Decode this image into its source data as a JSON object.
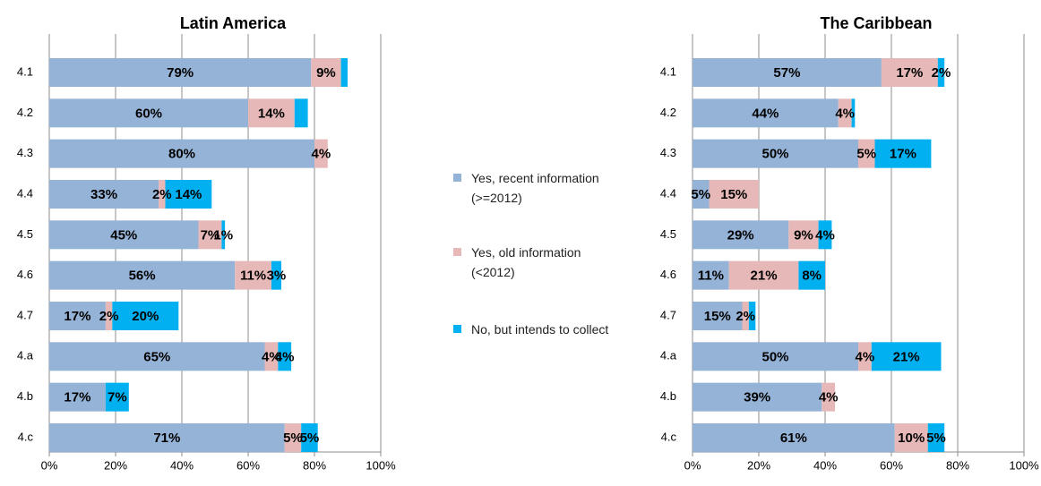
{
  "chart_data": [
    {
      "type": "bar",
      "orientation": "horizontal",
      "stacked": true,
      "title": "Latin America",
      "categories": [
        "4.1",
        "4.2",
        "4.3",
        "4.4",
        "4.5",
        "4.6",
        "4.7",
        "4.a",
        "4.b",
        "4.c"
      ],
      "series": [
        {
          "name": "Yes, recent information (>=2012)",
          "color": "#95b3d7",
          "values": [
            79,
            60,
            80,
            33,
            45,
            56,
            17,
            65,
            17,
            71
          ],
          "value_labels": [
            "79%",
            "60%",
            "80%",
            "33%",
            "45%",
            "56%",
            "17%",
            "65%",
            "17%",
            "71%"
          ]
        },
        {
          "name": "Yes, old information (<2012)",
          "color": "#e6b9b8",
          "values": [
            9,
            14,
            4,
            2,
            7,
            11,
            2,
            4,
            0,
            5
          ],
          "value_labels": [
            "9%",
            "14%",
            "4%",
            "2%",
            "7%",
            "11%",
            "2%",
            "4%",
            null,
            "5%"
          ]
        },
        {
          "name": "No, but intends to collect",
          "color": "#00b0f0",
          "values": [
            2,
            4,
            0,
            14,
            1,
            3,
            20,
            4,
            7,
            5
          ],
          "value_labels": [
            null,
            null,
            null,
            "14%",
            "1%",
            "3%",
            "20%",
            "4%",
            "7%",
            "5%"
          ]
        }
      ],
      "xlim": [
        0,
        100
      ],
      "xticks": [
        {
          "value": 0,
          "label": "0%"
        },
        {
          "value": 20,
          "label": "20%"
        },
        {
          "value": 40,
          "label": "40%"
        },
        {
          "value": 60,
          "label": "60%"
        },
        {
          "value": 80,
          "label": "80%"
        },
        {
          "value": 100,
          "label": "100%"
        }
      ],
      "grid": true
    },
    {
      "type": "bar",
      "orientation": "horizontal",
      "stacked": true,
      "title": "The Caribbean",
      "categories": [
        "4.1",
        "4.2",
        "4.3",
        "4.4",
        "4.5",
        "4.6",
        "4.7",
        "4.a",
        "4.b",
        "4.c"
      ],
      "series": [
        {
          "color": "#95b3d7",
          "values": [
            57,
            44,
            50,
            5,
            29,
            11,
            15,
            50,
            39,
            61
          ],
          "value_labels": [
            "57%",
            "44%",
            "50%",
            "5%",
            "29%",
            "11%",
            "15%",
            "50%",
            "39%",
            "61%"
          ]
        },
        {
          "color": "#e6b9b8",
          "values": [
            17,
            4,
            5,
            15,
            9,
            21,
            2,
            4,
            4,
            10
          ],
          "value_labels": [
            "17%",
            "4%",
            "5%",
            "15%",
            "9%",
            "21%",
            "2%",
            "4%",
            "4%",
            "10%"
          ]
        },
        {
          "color": "#00b0f0",
          "values": [
            2,
            1,
            17,
            0,
            4,
            8,
            2,
            21,
            0,
            5
          ],
          "value_labels": [
            "2%",
            null,
            "17%",
            null,
            "4%",
            "8%",
            null,
            "21%",
            null,
            "5%"
          ]
        }
      ],
      "xlim": [
        0,
        100
      ],
      "xticks": [
        {
          "value": 0,
          "label": "0%"
        },
        {
          "value": 20,
          "label": "20%"
        },
        {
          "value": 40,
          "label": "40%"
        },
        {
          "value": 60,
          "label": "60%"
        },
        {
          "value": 80,
          "label": "80%"
        },
        {
          "value": 100,
          "label": "100%"
        }
      ],
      "grid": true
    }
  ]
}
